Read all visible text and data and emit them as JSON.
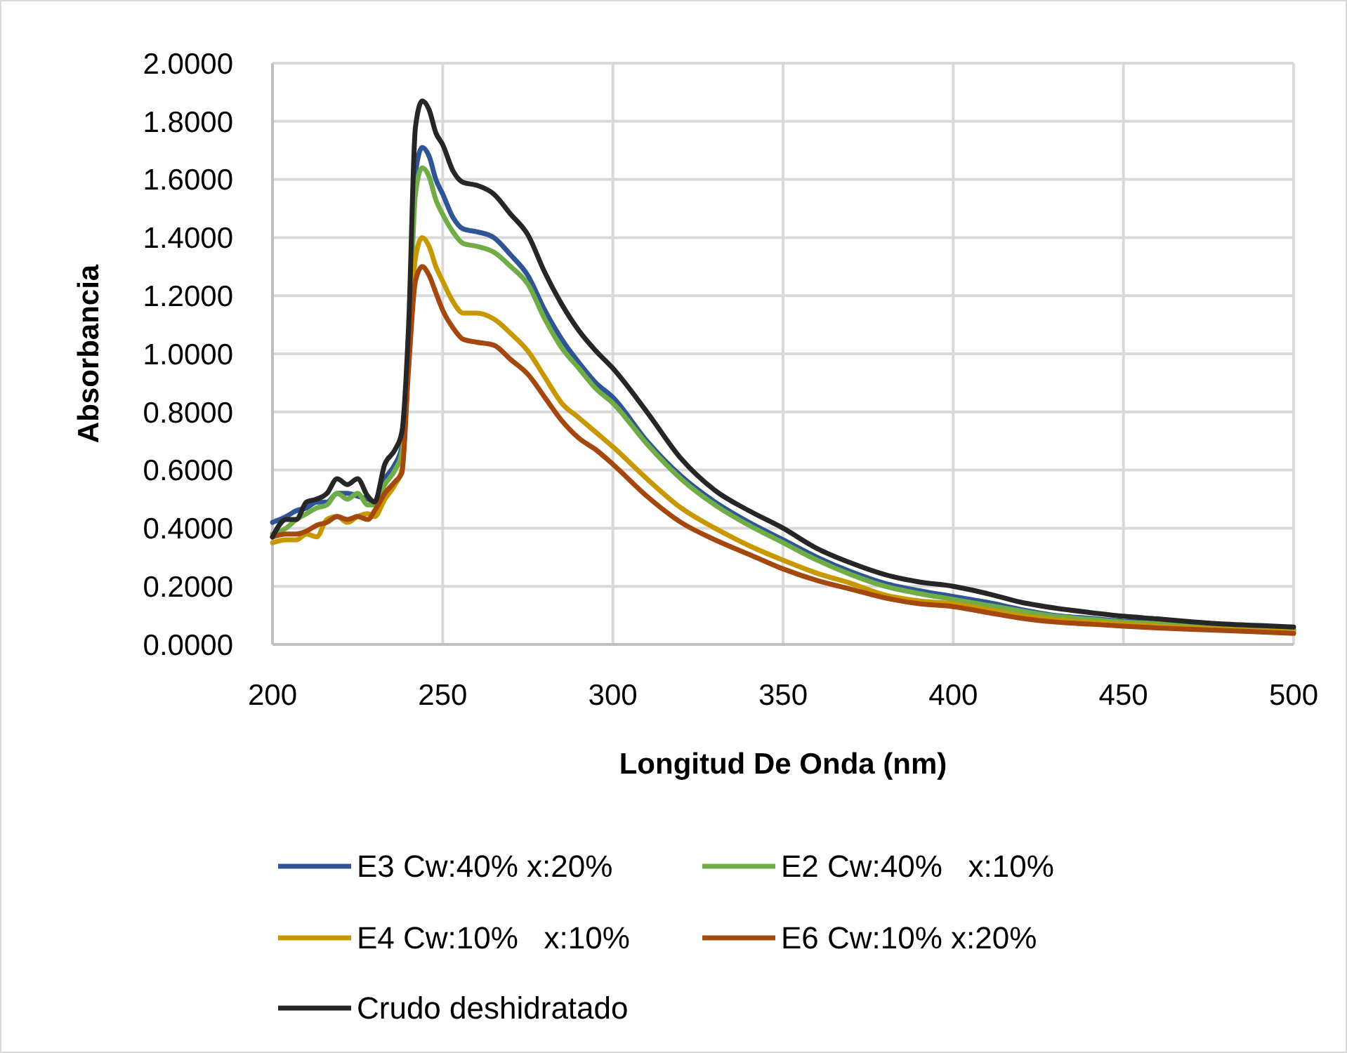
{
  "chart_data": {
    "type": "line",
    "xlabel": "Longitud De Onda (nm)",
    "ylabel": "Absorbancia",
    "x": [
      200,
      204,
      207,
      210,
      213,
      216,
      219,
      222,
      225,
      228,
      230,
      233,
      236,
      238,
      240,
      242,
      244,
      246,
      248,
      250,
      253,
      256,
      260,
      265,
      270,
      275,
      280,
      285,
      290,
      295,
      300,
      310,
      320,
      330,
      340,
      350,
      360,
      370,
      380,
      390,
      400,
      410,
      420,
      430,
      440,
      450,
      460,
      470,
      480,
      490,
      500
    ],
    "xlim": [
      200,
      500
    ],
    "xticks": [
      200,
      250,
      300,
      350,
      400,
      450,
      500
    ],
    "ylim": [
      0,
      2
    ],
    "yticks": [
      {
        "value": 0,
        "label": "0.0000"
      },
      {
        "value": 0.2,
        "label": "0.2000"
      },
      {
        "value": 0.4,
        "label": "0.4000"
      },
      {
        "value": 0.6,
        "label": "0.6000"
      },
      {
        "value": 0.8,
        "label": "0.8000"
      },
      {
        "value": 1,
        "label": "1.0000"
      },
      {
        "value": 1.2,
        "label": "1.2000"
      },
      {
        "value": 1.4,
        "label": "1.4000"
      },
      {
        "value": 1.6,
        "label": "1.6000"
      },
      {
        "value": 1.8,
        "label": "1.8000"
      },
      {
        "value": 2,
        "label": "2.0000"
      }
    ],
    "grid": true,
    "legend": "bottom",
    "marker": "none",
    "line_style": "solid",
    "series": [
      {
        "name": "E3 Cw:40% x:20%",
        "color": "#2f5597",
        "values": [
          0.42,
          0.44,
          0.46,
          0.47,
          0.49,
          0.49,
          0.52,
          0.52,
          0.51,
          0.5,
          0.49,
          0.57,
          0.62,
          0.68,
          1.05,
          1.62,
          1.71,
          1.68,
          1.6,
          1.55,
          1.47,
          1.43,
          1.42,
          1.4,
          1.34,
          1.27,
          1.15,
          1.05,
          0.97,
          0.9,
          0.85,
          0.7,
          0.58,
          0.49,
          0.42,
          0.36,
          0.3,
          0.25,
          0.21,
          0.185,
          0.165,
          0.145,
          0.12,
          0.1,
          0.09,
          0.08,
          0.075,
          0.068,
          0.061,
          0.055,
          0.05
        ]
      },
      {
        "name": "E2 Cw:40%   x:10%",
        "color": "#70ad47",
        "values": [
          0.38,
          0.4,
          0.43,
          0.45,
          0.47,
          0.48,
          0.52,
          0.5,
          0.52,
          0.48,
          0.48,
          0.55,
          0.6,
          0.66,
          1.0,
          1.55,
          1.64,
          1.61,
          1.53,
          1.48,
          1.42,
          1.38,
          1.37,
          1.35,
          1.3,
          1.24,
          1.12,
          1.02,
          0.95,
          0.88,
          0.83,
          0.69,
          0.57,
          0.48,
          0.41,
          0.35,
          0.29,
          0.24,
          0.2,
          0.175,
          0.155,
          0.135,
          0.115,
          0.097,
          0.087,
          0.077,
          0.072,
          0.065,
          0.058,
          0.052,
          0.048
        ]
      },
      {
        "name": "E4 Cw:10%   x:10%",
        "color": "#c89800",
        "values": [
          0.35,
          0.36,
          0.36,
          0.38,
          0.37,
          0.43,
          0.44,
          0.42,
          0.44,
          0.45,
          0.44,
          0.5,
          0.55,
          0.6,
          1.0,
          1.33,
          1.4,
          1.37,
          1.3,
          1.25,
          1.18,
          1.14,
          1.14,
          1.12,
          1.07,
          1.01,
          0.92,
          0.83,
          0.78,
          0.73,
          0.68,
          0.57,
          0.47,
          0.4,
          0.34,
          0.29,
          0.245,
          0.21,
          0.17,
          0.15,
          0.14,
          0.12,
          0.1,
          0.085,
          0.077,
          0.07,
          0.063,
          0.057,
          0.052,
          0.047,
          0.043
        ]
      },
      {
        "name": "E6 Cw:10% x:20%",
        "color": "#a5480f",
        "values": [
          0.37,
          0.38,
          0.38,
          0.39,
          0.41,
          0.42,
          0.44,
          0.43,
          0.44,
          0.43,
          0.46,
          0.52,
          0.56,
          0.59,
          0.95,
          1.25,
          1.3,
          1.27,
          1.21,
          1.15,
          1.09,
          1.05,
          1.04,
          1.03,
          0.98,
          0.93,
          0.85,
          0.77,
          0.71,
          0.67,
          0.62,
          0.51,
          0.42,
          0.36,
          0.31,
          0.26,
          0.22,
          0.19,
          0.16,
          0.14,
          0.13,
          0.11,
          0.09,
          0.077,
          0.07,
          0.063,
          0.057,
          0.052,
          0.048,
          0.043,
          0.038
        ]
      },
      {
        "name": "Crudo deshidratado",
        "color": "#262626",
        "values": [
          0.37,
          0.43,
          0.43,
          0.49,
          0.5,
          0.52,
          0.57,
          0.55,
          0.57,
          0.51,
          0.49,
          0.62,
          0.67,
          0.73,
          1.1,
          1.78,
          1.87,
          1.84,
          1.76,
          1.72,
          1.63,
          1.59,
          1.58,
          1.55,
          1.48,
          1.41,
          1.28,
          1.17,
          1.08,
          1.01,
          0.95,
          0.8,
          0.64,
          0.53,
          0.46,
          0.4,
          0.33,
          0.28,
          0.24,
          0.215,
          0.2,
          0.175,
          0.145,
          0.125,
          0.11,
          0.097,
          0.088,
          0.078,
          0.07,
          0.065,
          0.06
        ]
      }
    ]
  }
}
